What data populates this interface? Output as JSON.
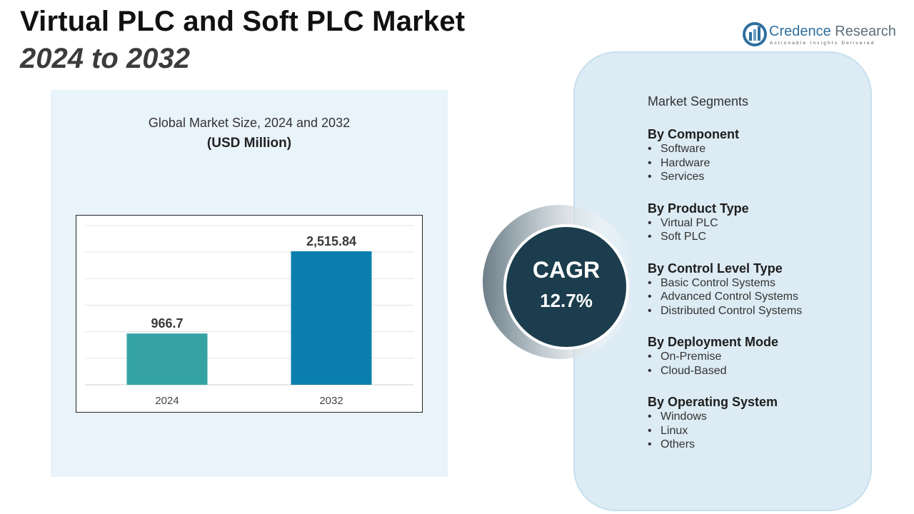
{
  "header": {
    "title_line1": "Virtual PLC and Soft PLC Market",
    "title_line2": "2024 to 2032"
  },
  "logo": {
    "name_part1": "Credence",
    "name_part2": "Research",
    "tagline": "Actionable Insights Delivered"
  },
  "colors": {
    "bar_2024": "#35a3a4",
    "bar_2032": "#0a7fae",
    "cagr_circle": "#1b3d4d",
    "panel_bg": "#e9f3fa",
    "segments_bg": "#dcebf4"
  },
  "chart_data": {
    "type": "bar",
    "title": "Global Market Size, 2024 and 2032",
    "subtitle": "(USD Million)",
    "categories": [
      "2024",
      "2032"
    ],
    "values": [
      966.7,
      2515.84
    ],
    "value_labels": [
      "966.7",
      "2,515.84"
    ],
    "ylim": [
      0,
      3000
    ],
    "grid": true,
    "legend": "none"
  },
  "cagr": {
    "label": "CAGR",
    "value": "12.7%"
  },
  "segments": {
    "heading": "Market Segments",
    "groups": [
      {
        "title": "By Component",
        "items": [
          "Software",
          "Hardware",
          "Services"
        ]
      },
      {
        "title": "By Product Type",
        "items": [
          "Virtual PLC",
          "Soft PLC"
        ]
      },
      {
        "title": "By Control Level Type",
        "items": [
          "Basic Control Systems",
          "Advanced Control Systems",
          "Distributed Control Systems"
        ]
      },
      {
        "title": "By Deployment Mode",
        "items": [
          "On-Premise",
          "Cloud-Based"
        ]
      },
      {
        "title": "By Operating System",
        "items": [
          "Windows",
          "Linux",
          "Others"
        ]
      }
    ]
  }
}
